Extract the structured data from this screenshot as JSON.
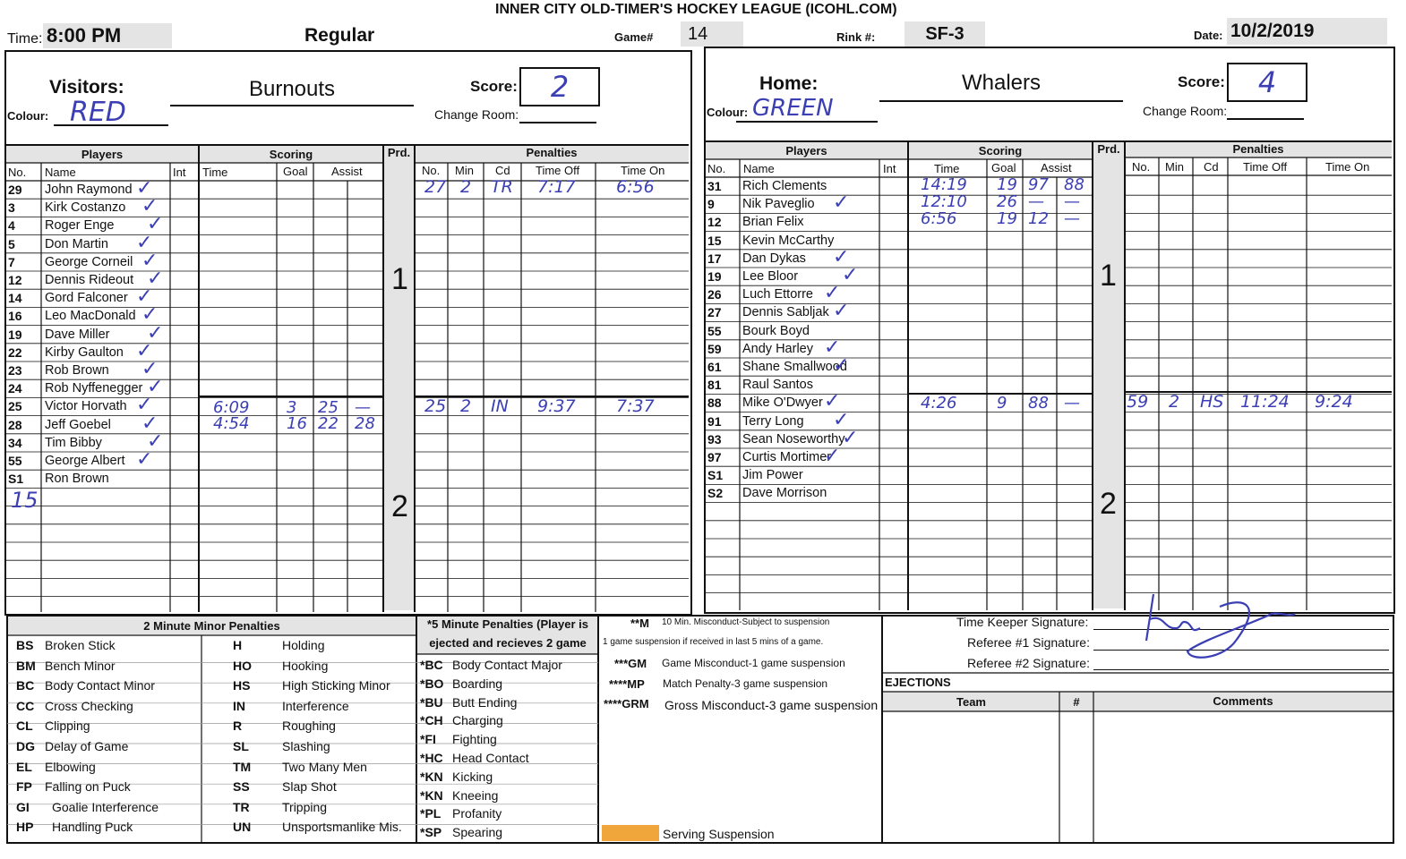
{
  "header": {
    "league": "INNER CITY OLD-TIMER'S HOCKEY LEAGUE (ICOHL.COM)",
    "time_label": "Time:",
    "time": "8:00 PM",
    "type": "Regular",
    "game_label": "Game#",
    "game": "14",
    "rink_label": "Rink #:",
    "rink": "SF-3",
    "date_label": "Date:",
    "date": "10/2/2019"
  },
  "visitors": {
    "label": "Visitors:",
    "team": "Burnouts",
    "colour_label": "Colour:",
    "colour": "RED",
    "score_label": "Score:",
    "score": "2",
    "change_room_label": "Change Room:",
    "players": [
      {
        "no": "29",
        "name": "John Raymond"
      },
      {
        "no": "3",
        "name": "Kirk Costanzo"
      },
      {
        "no": "4",
        "name": "Roger Enge"
      },
      {
        "no": "5",
        "name": "Don Martin"
      },
      {
        "no": "7",
        "name": "George Corneil"
      },
      {
        "no": "12",
        "name": "Dennis Rideout"
      },
      {
        "no": "14",
        "name": "Gord Falconer"
      },
      {
        "no": "16",
        "name": "Leo MacDonald"
      },
      {
        "no": "19",
        "name": "Dave Miller"
      },
      {
        "no": "22",
        "name": "Kirby Gaulton"
      },
      {
        "no": "23",
        "name": "Rob Brown"
      },
      {
        "no": "24",
        "name": "Rob Nyffenegger"
      },
      {
        "no": "25",
        "name": "Victor Horvath"
      },
      {
        "no": "28",
        "name": "Jeff Goebel"
      },
      {
        "no": "34",
        "name": "Tim Bibby"
      },
      {
        "no": "55",
        "name": "George Albert"
      },
      {
        "no": "S1",
        "name": "Ron Brown"
      }
    ],
    "extra_no": "15",
    "scoring": [
      {
        "time": "6:09",
        "goal": "3",
        "assist1": "25",
        "assist2": "—"
      },
      {
        "time": "4:54",
        "goal": "16",
        "assist1": "22",
        "assist2": "28"
      }
    ],
    "penalties": [
      {
        "no": "27",
        "min": "2",
        "cd": "TR",
        "off": "7:17",
        "on": "6:56"
      },
      {
        "no": "25",
        "min": "2",
        "cd": "IN",
        "off": "9:37",
        "on": "7:37"
      }
    ]
  },
  "home": {
    "label": "Home:",
    "team": "Whalers",
    "colour_label": "Colour:",
    "colour": "GREEN",
    "score_label": "Score:",
    "score": "4",
    "change_room_label": "Change Room:",
    "players": [
      {
        "no": "31",
        "name": "Rich Clements"
      },
      {
        "no": "9",
        "name": "Nik Paveglio"
      },
      {
        "no": "12",
        "name": "Brian Felix"
      },
      {
        "no": "15",
        "name": "Kevin McCarthy"
      },
      {
        "no": "17",
        "name": "Dan Dykas"
      },
      {
        "no": "19",
        "name": "Lee Bloor"
      },
      {
        "no": "26",
        "name": "Luch Ettorre"
      },
      {
        "no": "27",
        "name": "Dennis Sabljak"
      },
      {
        "no": "55",
        "name": "Bourk Boyd"
      },
      {
        "no": "59",
        "name": "Andy Harley"
      },
      {
        "no": "61",
        "name": "Shane Smallwood"
      },
      {
        "no": "81",
        "name": "Raul Santos"
      },
      {
        "no": "88",
        "name": "Mike O'Dwyer"
      },
      {
        "no": "91",
        "name": "Terry Long"
      },
      {
        "no": "93",
        "name": "Sean Noseworthy"
      },
      {
        "no": "97",
        "name": "Curtis Mortimer"
      },
      {
        "no": "S1",
        "name": "Jim Power"
      },
      {
        "no": "S2",
        "name": "Dave Morrison"
      }
    ],
    "scoring": [
      {
        "time": "14:19",
        "goal": "19",
        "assist1": "97",
        "assist2": "88"
      },
      {
        "time": "12:10",
        "goal": "26",
        "assist1": "—",
        "assist2": "—"
      },
      {
        "time": "6:56",
        "goal": "19",
        "assist1": "12",
        "assist2": "—"
      },
      {
        "time": "4:26",
        "goal": "9",
        "assist1": "88",
        "assist2": "—"
      }
    ],
    "penalties": [
      {
        "no": "59",
        "min": "2",
        "cd": "HS",
        "off": "11:24",
        "on": "9:24"
      }
    ]
  },
  "columns": {
    "players": "Players",
    "scoring": "Scoring",
    "prd": "Prd.",
    "penalties": "Penalties",
    "no": "No.",
    "name": "Name",
    "int": "Int",
    "time": "Time",
    "goal": "Goal",
    "assist": "Assist",
    "min": "Min",
    "cd": "Cd",
    "time_off": "Time Off",
    "time_on": "Time On",
    "period1": "1",
    "period2": "2"
  },
  "minor": {
    "title": "2 Minute Minor Penalties",
    "left": [
      {
        "code": "BS",
        "label": "Broken Stick"
      },
      {
        "code": "BM",
        "label": "Bench Minor"
      },
      {
        "code": "BC",
        "label": "Body Contact Minor"
      },
      {
        "code": "CC",
        "label": "Cross Checking"
      },
      {
        "code": "CL",
        "label": "Clipping"
      },
      {
        "code": "DG",
        "label": "Delay of Game"
      },
      {
        "code": "EL",
        "label": "Elbowing"
      },
      {
        "code": "FP",
        "label": "Falling on Puck"
      },
      {
        "code": "GI",
        "label": "Goalie Interference"
      },
      {
        "code": "HP",
        "label": "Handling Puck"
      }
    ],
    "right": [
      {
        "code": "H",
        "label": "Holding"
      },
      {
        "code": "HO",
        "label": "Hooking"
      },
      {
        "code": "HS",
        "label": "High Sticking Minor"
      },
      {
        "code": "IN",
        "label": "Interference"
      },
      {
        "code": "R",
        "label": "Roughing"
      },
      {
        "code": "SL",
        "label": "Slashing"
      },
      {
        "code": "TM",
        "label": "Two Many Men"
      },
      {
        "code": "SS",
        "label": "Slap Shot"
      },
      {
        "code": "TR",
        "label": "Tripping"
      },
      {
        "code": "UN",
        "label": "Unsportsmanlike Mis."
      }
    ]
  },
  "major": {
    "title_line1": "*5 Minute Penalties (Player is",
    "title_line2": "ejected and recieves 2 game",
    "items": [
      {
        "code": "*BC",
        "label": "Body Contact Major"
      },
      {
        "code": "*BO",
        "label": "Boarding"
      },
      {
        "code": "*BU",
        "label": "Butt Ending"
      },
      {
        "code": "*CH",
        "label": "Charging"
      },
      {
        "code": "*FI",
        "label": "Fighting"
      },
      {
        "code": "*HC",
        "label": "Head Contact"
      },
      {
        "code": "*KN",
        "label": "Kicking"
      },
      {
        "code": "*KN",
        "label": "Kneeing"
      },
      {
        "code": "*PL",
        "label": "Profanity"
      },
      {
        "code": "*SP",
        "label": "Spearing"
      }
    ]
  },
  "misconduct": {
    "m_code": "**M",
    "m_line1": "10 Min. Misconduct-Subject to suspension",
    "m_line2": "1 game suspension if received in last 5 mins of a game.",
    "items": [
      {
        "code": "***GM",
        "label": "Game Misconduct-1 game suspension"
      },
      {
        "code": "****MP",
        "label": "Match Penalty-3 game suspension"
      },
      {
        "code": "****GRM",
        "label": "Gross Misconduct-3 game suspension"
      }
    ],
    "serving": "Serving Suspension",
    "serving_color": "#f0a63a"
  },
  "signatures": {
    "timekeeper": "Time Keeper Signature:",
    "ref1": "Referee #1 Signature:",
    "ref2": "Referee #2 Signature:"
  },
  "ejections": {
    "title": "EJECTIONS",
    "team": "Team",
    "no": "#",
    "comments": "Comments"
  }
}
